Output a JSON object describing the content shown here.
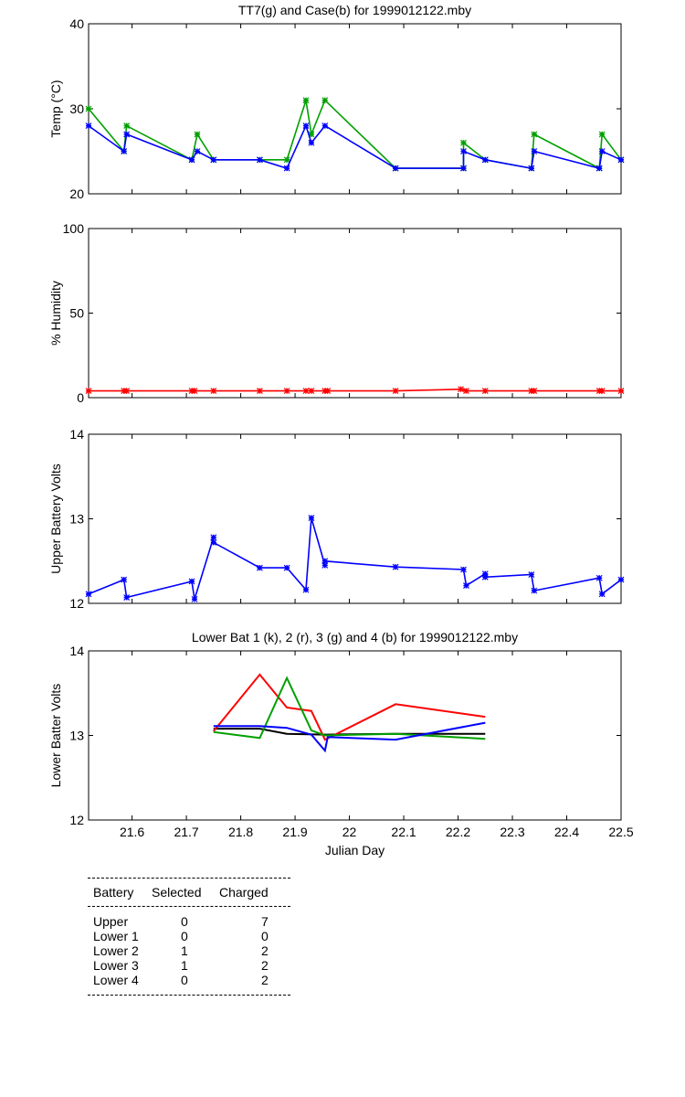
{
  "colors": {
    "green": "#00a000",
    "blue": "#0000ff",
    "red": "#ff0000",
    "black": "#000000"
  },
  "chart_data": [
    {
      "type": "line",
      "title": "TT7(g) and Case(b) for 1999012122.mby",
      "xlabel": "",
      "ylabel": "Temp  (°C)",
      "xlim": [
        21.52,
        22.5
      ],
      "ylim": [
        20,
        40
      ],
      "yticks": [
        20,
        30,
        40
      ],
      "series": [
        {
          "color": "green",
          "markers": true,
          "x": [
            21.52,
            21.585,
            21.59,
            21.71,
            21.72,
            21.75,
            21.835,
            21.885,
            21.92,
            21.93,
            21.955,
            22.085,
            22.21,
            22.21,
            22.25,
            22.335,
            22.34,
            22.46,
            22.465,
            22.5
          ],
          "y": [
            30,
            25,
            28,
            24,
            27,
            24,
            24,
            24,
            31,
            27,
            31,
            23,
            23,
            26,
            24,
            23,
            27,
            23,
            27,
            24
          ]
        },
        {
          "color": "blue",
          "markers": true,
          "x": [
            21.52,
            21.585,
            21.59,
            21.71,
            21.72,
            21.75,
            21.835,
            21.885,
            21.92,
            21.93,
            21.955,
            22.085,
            22.21,
            22.21,
            22.25,
            22.335,
            22.34,
            22.46,
            22.465,
            22.5
          ],
          "y": [
            28,
            25,
            27,
            24,
            25,
            24,
            24,
            23,
            28,
            26,
            28,
            23,
            23,
            25,
            24,
            23,
            25,
            23,
            25,
            24
          ]
        }
      ]
    },
    {
      "type": "line",
      "title": "",
      "xlabel": "",
      "ylabel": "% Humidity",
      "xlim": [
        21.52,
        22.5
      ],
      "ylim": [
        0,
        100
      ],
      "yticks": [
        0,
        50,
        100
      ],
      "series": [
        {
          "color": "red",
          "markers": true,
          "x": [
            21.52,
            21.585,
            21.59,
            21.71,
            21.715,
            21.75,
            21.835,
            21.885,
            21.92,
            21.93,
            21.955,
            21.96,
            22.085,
            22.205,
            22.215,
            22.25,
            22.335,
            22.34,
            22.46,
            22.465,
            22.5
          ],
          "y": [
            4,
            4,
            4,
            4,
            4,
            4,
            4,
            4,
            4,
            4,
            4,
            4,
            4,
            5,
            4,
            4,
            4,
            4,
            4,
            4,
            4
          ]
        }
      ]
    },
    {
      "type": "line",
      "title": "",
      "xlabel": "",
      "ylabel": "Upper Battery Volts",
      "xlim": [
        21.52,
        22.5
      ],
      "ylim": [
        12,
        14
      ],
      "yticks": [
        12,
        13,
        14
      ],
      "series": [
        {
          "color": "blue",
          "markers": true,
          "x": [
            21.52,
            21.585,
            21.59,
            21.71,
            21.715,
            21.75,
            21.75,
            21.835,
            21.885,
            21.92,
            21.93,
            21.955,
            21.955,
            22.085,
            22.21,
            22.215,
            22.25,
            22.25,
            22.335,
            22.34,
            22.46,
            22.465,
            22.5
          ],
          "y": [
            12.11,
            12.28,
            12.07,
            12.26,
            12.05,
            12.78,
            12.72,
            12.42,
            12.42,
            12.16,
            13.01,
            12.45,
            12.5,
            12.43,
            12.4,
            12.21,
            12.35,
            12.31,
            12.34,
            12.15,
            12.3,
            12.11,
            12.28
          ]
        }
      ]
    },
    {
      "type": "line",
      "title": "Lower Bat 1 (k), 2 (r), 3 (g) and 4 (b) for 1999012122.mby",
      "xlabel": "Julian Day",
      "ylabel": "Lower Batter Volts",
      "xlim": [
        21.52,
        22.5
      ],
      "ylim": [
        12,
        14
      ],
      "yticks": [
        12,
        13,
        14
      ],
      "xticks": [
        21.6,
        21.7,
        21.8,
        21.9,
        22,
        22.1,
        22.2,
        22.3,
        22.4,
        22.5
      ],
      "xticklabels": [
        "21.6",
        "21.7",
        "21.8",
        "21.9",
        "22",
        "22.1",
        "22.2",
        "22.3",
        "22.4",
        "22.5"
      ],
      "series": [
        {
          "color": "black",
          "markers": false,
          "x": [
            21.75,
            21.835,
            21.885,
            21.955,
            22.085,
            22.25
          ],
          "y": [
            13.08,
            13.08,
            13.02,
            13.01,
            13.02,
            13.02
          ]
        },
        {
          "color": "red",
          "markers": false,
          "x": [
            21.75,
            21.835,
            21.885,
            21.93,
            21.955,
            22.085,
            22.25
          ],
          "y": [
            13.05,
            13.72,
            13.33,
            13.29,
            12.95,
            13.37,
            13.22
          ]
        },
        {
          "color": "green",
          "markers": false,
          "x": [
            21.75,
            21.835,
            21.885,
            21.93,
            21.955,
            22.085,
            22.25
          ],
          "y": [
            13.04,
            12.97,
            13.68,
            13.06,
            13.0,
            13.02,
            12.96
          ]
        },
        {
          "color": "blue",
          "markers": false,
          "x": [
            21.75,
            21.835,
            21.885,
            21.93,
            21.955,
            21.96,
            22.085,
            22.25
          ],
          "y": [
            13.11,
            13.11,
            13.09,
            13.01,
            12.82,
            12.98,
            12.95,
            13.15
          ]
        }
      ]
    }
  ],
  "summary_table": {
    "headers": [
      "Battery",
      "Selected",
      "Charged"
    ],
    "rows": [
      [
        "Upper",
        "0",
        "7"
      ],
      [
        "Lower 1",
        "0",
        "0"
      ],
      [
        "Lower 2",
        "1",
        "2"
      ],
      [
        "Lower 3",
        "1",
        "2"
      ],
      [
        "Lower 4",
        "0",
        "2"
      ]
    ]
  }
}
